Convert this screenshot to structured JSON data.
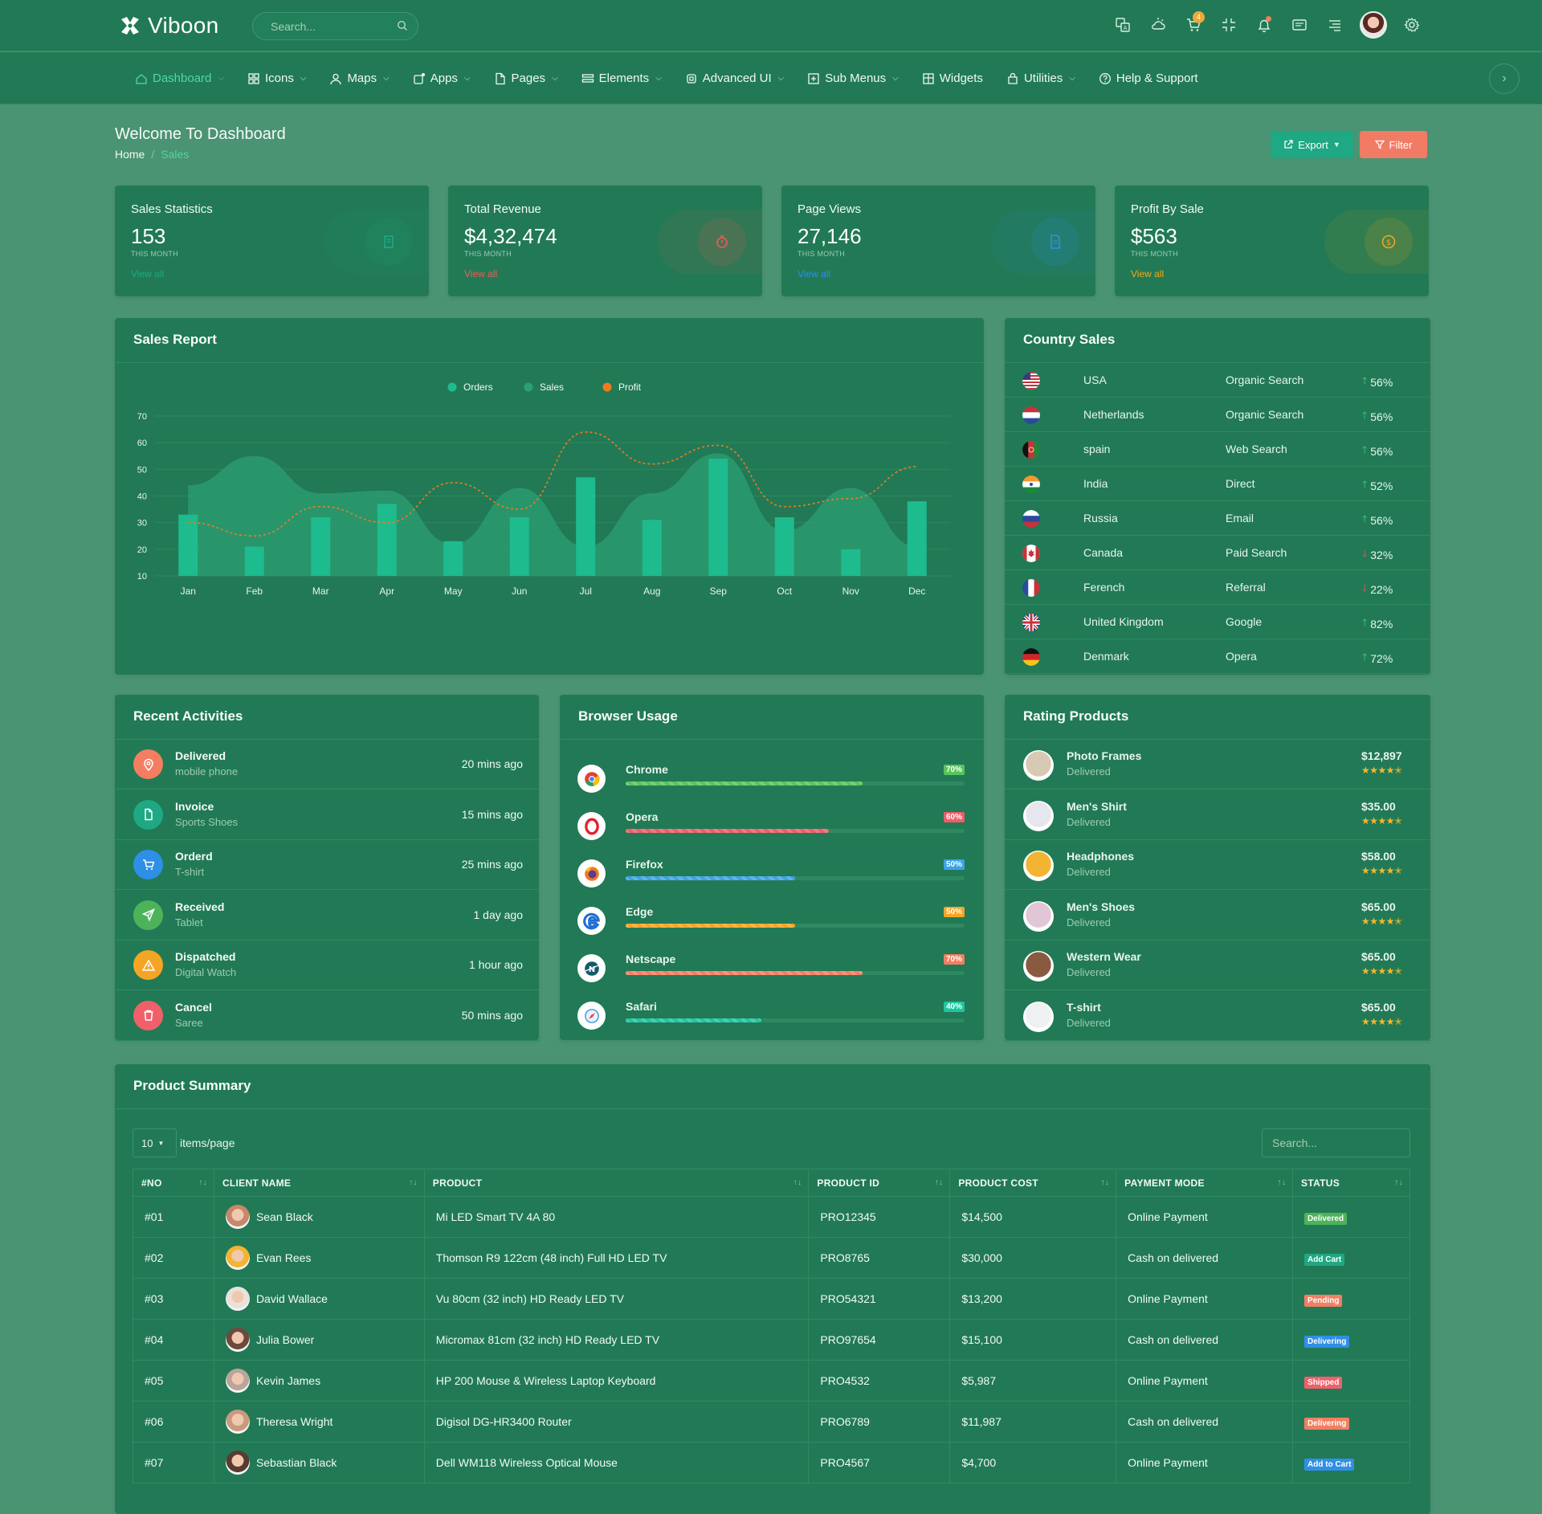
{
  "app": {
    "name": "Viboon"
  },
  "search": {
    "placeholder": "Search..."
  },
  "nav": [
    {
      "label": "Dashboard",
      "icon": "home-icon",
      "active": true,
      "chevron": true
    },
    {
      "label": "Icons",
      "icon": "grid-icon",
      "chevron": true
    },
    {
      "label": "Maps",
      "icon": "user-pin-icon",
      "chevron": true
    },
    {
      "label": "Apps",
      "icon": "apps-icon",
      "chevron": true
    },
    {
      "label": "Pages",
      "icon": "file-icon",
      "chevron": true
    },
    {
      "label": "Elements",
      "icon": "layers-icon",
      "chevron": true
    },
    {
      "label": "Advanced UI",
      "icon": "cpu-icon",
      "chevron": true
    },
    {
      "label": "Sub Menus",
      "icon": "plus-square-icon",
      "chevron": true
    },
    {
      "label": "Widgets",
      "icon": "layout-icon",
      "chevron": false
    },
    {
      "label": "Utilities",
      "icon": "bag-icon",
      "chevron": true
    },
    {
      "label": "Help & Support",
      "icon": "help-icon",
      "chevron": false
    }
  ],
  "topbar": {
    "cart_count": "4"
  },
  "header": {
    "title": "Welcome To Dashboard",
    "breadcrumb_home": "Home",
    "breadcrumb_sep": "/",
    "breadcrumb_current": "Sales",
    "export_label": "Export",
    "filter_label": "Filter"
  },
  "stats": [
    {
      "label": "Sales Statistics",
      "value": "153",
      "sub": "THIS MONTH",
      "link": "View all",
      "color": "#1ea883"
    },
    {
      "label": "Total Revenue",
      "value": "$4,32,474",
      "sub": "THIS MONTH",
      "link": "View all",
      "color": "#f25a55"
    },
    {
      "label": "Page Views",
      "value": "27,146",
      "sub": "THIS MONTH",
      "link": "View all",
      "color": "#2f8fe6"
    },
    {
      "label": "Profit By Sale",
      "value": "$563",
      "sub": "THIS MONTH",
      "link": "View all",
      "color": "#f2a81c"
    }
  ],
  "sales_report": {
    "title": "Sales Report"
  },
  "chart_data": {
    "type": "bar",
    "categories": [
      "Jan",
      "Feb",
      "Mar",
      "Apr",
      "May",
      "Jun",
      "Jul",
      "Aug",
      "Sep",
      "Oct",
      "Nov",
      "Dec"
    ],
    "series": [
      {
        "name": "Orders",
        "type": "bar",
        "color": "#1dbb8e",
        "values": [
          33,
          21,
          32,
          37,
          23,
          32,
          47,
          31,
          54,
          32,
          20,
          38
        ]
      },
      {
        "name": "Sales",
        "type": "area",
        "color": "#2a9a70",
        "values": [
          44,
          55,
          41,
          42,
          22,
          43,
          21,
          41,
          56,
          27,
          43,
          21
        ]
      },
      {
        "name": "Profit",
        "type": "line",
        "color": "#f07b1f",
        "values": [
          30,
          25,
          36,
          30,
          45,
          35,
          64,
          52,
          59,
          36,
          39,
          51
        ]
      }
    ],
    "yticks": [
      10,
      20,
      30,
      40,
      50,
      60,
      70
    ],
    "ylim": [
      10,
      70
    ],
    "legend": "top-center",
    "grid": true
  },
  "country_sales": {
    "title": "Country Sales",
    "rows": [
      {
        "country": "USA",
        "source": "Organic Search",
        "pct": "56%",
        "trend": "up",
        "flag": "us-flag"
      },
      {
        "country": "Netherlands",
        "source": "Organic Search",
        "pct": "56%",
        "trend": "up",
        "flag": "nl-flag"
      },
      {
        "country": "spain",
        "source": "Web Search",
        "pct": "56%",
        "trend": "up",
        "flag": "af-flag"
      },
      {
        "country": "India",
        "source": "Direct",
        "pct": "52%",
        "trend": "up",
        "flag": "in-flag"
      },
      {
        "country": "Russia",
        "source": "Email",
        "pct": "56%",
        "trend": "up",
        "flag": "ru-flag"
      },
      {
        "country": "Canada",
        "source": "Paid Search",
        "pct": "32%",
        "trend": "down",
        "flag": "ca-flag"
      },
      {
        "country": "Ferench",
        "source": "Referral",
        "pct": "22%",
        "trend": "down",
        "flag": "fr-flag"
      },
      {
        "country": "United Kingdom",
        "source": "Google",
        "pct": "82%",
        "trend": "up",
        "flag": "uk-flag"
      },
      {
        "country": "Denmark",
        "source": "Opera",
        "pct": "72%",
        "trend": "up",
        "flag": "de-flag"
      }
    ]
  },
  "recent": {
    "title": "Recent Activities",
    "items": [
      {
        "title": "Delivered",
        "sub": "mobile phone",
        "time": "20 mins ago",
        "color": "#f37e61",
        "icon": "location-pin-icon"
      },
      {
        "title": "Invoice",
        "sub": "Sports Shoes",
        "time": "15 mins ago",
        "color": "#1ea883",
        "icon": "document-icon"
      },
      {
        "title": "Orderd",
        "sub": "T-shirt",
        "time": "25 mins ago",
        "color": "#2f8fe6",
        "icon": "cart-icon"
      },
      {
        "title": "Received",
        "sub": "Tablet",
        "time": "1 day ago",
        "color": "#4db35a",
        "icon": "send-icon"
      },
      {
        "title": "Dispatched",
        "sub": "Digital Watch",
        "time": "1 hour ago",
        "color": "#f5a524",
        "icon": "warning-icon"
      },
      {
        "title": "Cancel",
        "sub": "Saree",
        "time": "50 mins ago",
        "color": "#f0606a",
        "icon": "trash-icon"
      }
    ]
  },
  "browser": {
    "title": "Browser Usage",
    "items": [
      {
        "name": "Chrome",
        "pct": "70%",
        "value": 0.7,
        "color": "#58c45c",
        "icon": "chrome-icon"
      },
      {
        "name": "Opera",
        "pct": "60%",
        "value": 0.6,
        "color": "#f15c68",
        "icon": "opera-icon"
      },
      {
        "name": "Firefox",
        "pct": "50%",
        "value": 0.5,
        "color": "#3ea2e8",
        "icon": "firefox-icon"
      },
      {
        "name": "Edge",
        "pct": "50%",
        "value": 0.5,
        "color": "#f5a524",
        "icon": "edge-icon"
      },
      {
        "name": "Netscape",
        "pct": "70%",
        "value": 0.7,
        "color": "#f37e61",
        "icon": "netscape-icon"
      },
      {
        "name": "Safari",
        "pct": "40%",
        "value": 0.4,
        "color": "#1fc5a0",
        "icon": "safari-icon"
      }
    ]
  },
  "rating": {
    "title": "Rating Products",
    "stars": "★★★★✭",
    "items": [
      {
        "name": "Photo Frames",
        "status": "Delivered",
        "price": "$12,897",
        "color": "#d8c9b3"
      },
      {
        "name": "Men's Shirt",
        "status": "Delivered",
        "price": "$35.00",
        "color": "#e6e6ee"
      },
      {
        "name": "Headphones",
        "status": "Delivered",
        "price": "$58.00",
        "color": "#f3b431"
      },
      {
        "name": "Men's Shoes",
        "status": "Delivered",
        "price": "$65.00",
        "color": "#e1c6d5"
      },
      {
        "name": "Western Wear",
        "status": "Delivered",
        "price": "$65.00",
        "color": "#8a5a40"
      },
      {
        "name": "T-shirt",
        "status": "Delivered",
        "price": "$65.00",
        "color": "#eef0f2"
      }
    ]
  },
  "summary": {
    "title": "Product Summary",
    "per_page": "10",
    "per_page_label": "items/page",
    "search_placeholder": "Search...",
    "columns": [
      "#NO",
      "CLIENT NAME",
      "PRODUCT",
      "PRODUCT ID",
      "PRODUCT COST",
      "PAYMENT MODE",
      "STATUS"
    ],
    "rows": [
      {
        "no": "#01",
        "client": "Sean Black",
        "product": "Mi LED Smart TV 4A 80",
        "pid": "PRO12345",
        "cost": "$14,500",
        "mode": "Online Payment",
        "status": "Delivered",
        "scolor": "#4db35a",
        "av": "#c7876a"
      },
      {
        "no": "#02",
        "client": "Evan Rees",
        "product": "Thomson R9 122cm (48 inch) Full HD LED TV",
        "pid": "PRO8765",
        "cost": "$30,000",
        "mode": "Cash on delivered",
        "status": "Add Cart",
        "scolor": "#1ea883",
        "av": "#f3b431"
      },
      {
        "no": "#03",
        "client": "David Wallace",
        "product": "Vu 80cm (32 inch) HD Ready LED TV",
        "pid": "PRO54321",
        "cost": "$13,200",
        "mode": "Online Payment",
        "status": "Pending",
        "scolor": "#f37e61",
        "av": "#e9e1dc"
      },
      {
        "no": "#04",
        "client": "Julia Bower",
        "product": "Micromax 81cm (32 inch) HD Ready LED TV",
        "pid": "PRO97654",
        "cost": "$15,100",
        "mode": "Cash on delivered",
        "status": "Delivering",
        "scolor": "#2f8fe6",
        "av": "#6e4a3d"
      },
      {
        "no": "#05",
        "client": "Kevin James",
        "product": "HP 200 Mouse & Wireless Laptop Keyboard",
        "pid": "PRO4532",
        "cost": "$5,987",
        "mode": "Online Payment",
        "status": "Shipped",
        "scolor": "#f0606a",
        "av": "#b9a59a"
      },
      {
        "no": "#06",
        "client": "Theresa Wright",
        "product": "Digisol DG-HR3400 Router",
        "pid": "PRO6789",
        "cost": "$11,987",
        "mode": "Cash on delivered",
        "status": "Delivering",
        "scolor": "#f37e61",
        "av": "#c99a7d"
      },
      {
        "no": "#07",
        "client": "Sebastian Black",
        "product": "Dell WM118 Wireless Optical Mouse",
        "pid": "PRO4567",
        "cost": "$4,700",
        "mode": "Online Payment",
        "status": "Add to Cart",
        "scolor": "#2f8fe6",
        "av": "#5a3b30"
      }
    ]
  }
}
